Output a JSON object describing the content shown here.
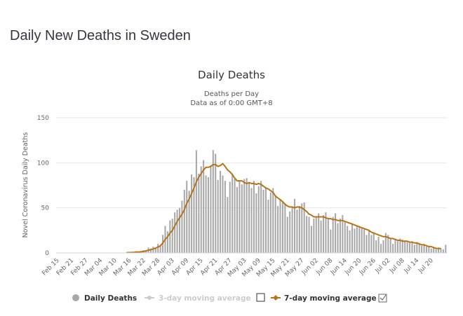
{
  "page": {
    "title": "Daily New Deaths in Sweden"
  },
  "colors": {
    "bar": "#a8a8a8",
    "line7": "#b6741a",
    "line3_disabled": "#cccccc",
    "grid": "#e6e6e6",
    "axis": "#ccd6eb"
  },
  "chart_data": {
    "type": "bar",
    "title": "Daily Deaths",
    "subtitle_lines": [
      "Deaths per Day",
      "Data as of 0:00 GMT+8"
    ],
    "xlabel": "",
    "ylabel": "Novel Coronavirus Daily Deaths",
    "ylim": [
      0,
      150
    ],
    "yticks": [
      0,
      50,
      100,
      150
    ],
    "grid": true,
    "legend_position": "bottom",
    "start_date": "Feb 15",
    "xtick_labels": [
      "Feb 15",
      "Feb 21",
      "Feb 27",
      "Mar 04",
      "Mar 10",
      "Mar 16",
      "Mar 22",
      "Mar 28",
      "Apr 03",
      "Apr 09",
      "Apr 15",
      "Apr 21",
      "Apr 27",
      "May 03",
      "May 09",
      "May 15",
      "May 21",
      "May 27",
      "Jun 02",
      "Jun 08",
      "Jun 14",
      "Jun 20",
      "Jun 26",
      "Jul 02",
      "Jul 08",
      "Jul 14",
      "Jul 20"
    ],
    "xtick_interval_days": 6,
    "series": [
      {
        "name": "Daily Deaths",
        "type": "bar",
        "values": [
          0,
          0,
          0,
          0,
          0,
          0,
          0,
          0,
          0,
          0,
          0,
          0,
          0,
          0,
          0,
          0,
          0,
          0,
          0,
          0,
          0,
          0,
          0,
          0,
          0,
          0,
          0,
          0,
          0,
          1,
          0,
          1,
          1,
          2,
          1,
          1,
          3,
          2,
          6,
          5,
          7,
          5,
          10,
          8,
          20,
          30,
          24,
          36,
          38,
          45,
          48,
          50,
          58,
          70,
          80,
          69,
          87,
          84,
          114,
          88,
          96,
          103,
          86,
          84,
          97,
          114,
          110,
          81,
          91,
          86,
          80,
          62,
          79,
          88,
          82,
          73,
          80,
          76,
          82,
          83,
          78,
          72,
          80,
          66,
          74,
          80,
          70,
          73,
          59,
          67,
          72,
          64,
          52,
          60,
          57,
          55,
          40,
          46,
          51,
          60,
          48,
          52,
          55,
          56,
          41,
          40,
          30,
          38,
          40,
          44,
          36,
          42,
          45,
          37,
          26,
          40,
          44,
          33,
          38,
          42,
          35,
          30,
          25,
          33,
          27,
          30,
          29,
          28,
          26,
          20,
          24,
          20,
          23,
          14,
          18,
          10,
          14,
          22,
          20,
          16,
          10,
          15,
          13,
          16,
          15,
          14,
          12,
          11,
          13,
          9,
          12,
          10,
          8,
          10,
          7,
          8,
          5,
          6,
          4,
          6,
          5,
          4,
          9
        ]
      },
      {
        "name": "3-day moving average",
        "type": "line",
        "visible": false,
        "checkbox_checked": false
      },
      {
        "name": "7-day moving average",
        "type": "line",
        "visible": true,
        "checkbox_checked": true,
        "values": [
          null,
          null,
          null,
          null,
          null,
          null,
          null,
          null,
          null,
          null,
          null,
          null,
          null,
          null,
          null,
          null,
          null,
          null,
          null,
          null,
          null,
          null,
          null,
          null,
          null,
          null,
          null,
          null,
          null,
          0.4,
          0.4,
          0.6,
          0.7,
          1.0,
          1.0,
          1.3,
          1.6,
          2.3,
          3.0,
          3.6,
          4.4,
          5.4,
          6.6,
          8.0,
          11,
          15,
          18,
          22,
          25,
          30,
          35,
          39,
          43,
          48,
          55,
          60,
          66,
          72,
          79,
          84,
          88,
          92,
          95,
          95,
          96,
          98,
          98,
          96,
          97,
          99,
          96,
          92,
          90,
          87,
          83,
          80,
          80,
          80,
          78,
          77,
          78,
          77,
          77,
          76,
          77,
          76,
          74,
          72,
          71,
          69,
          67,
          63,
          61,
          59,
          57,
          54,
          52,
          51,
          51,
          50,
          51,
          51,
          50,
          48,
          46,
          43,
          42,
          40,
          40,
          40,
          40,
          40,
          39,
          38,
          38,
          37,
          37,
          36,
          36,
          36,
          35,
          34,
          33,
          32,
          31,
          30,
          29,
          28,
          27,
          26,
          25,
          23,
          22,
          21,
          20,
          19,
          18,
          18,
          17,
          16,
          16,
          15,
          14,
          14,
          13,
          13,
          13,
          12,
          12,
          11,
          11,
          10,
          9,
          9,
          8,
          7,
          7,
          6,
          5,
          5,
          5
        ]
      }
    ]
  },
  "legend": {
    "items": [
      {
        "label": "Daily Deaths",
        "icon": "circle-marker-icon",
        "enabled": true
      },
      {
        "label": "3-day moving average",
        "icon": "line-marker-icon",
        "enabled": false,
        "checkbox": false
      },
      {
        "label": "7-day moving average",
        "icon": "line-marker-icon",
        "enabled": true,
        "checkbox": true
      }
    ]
  }
}
